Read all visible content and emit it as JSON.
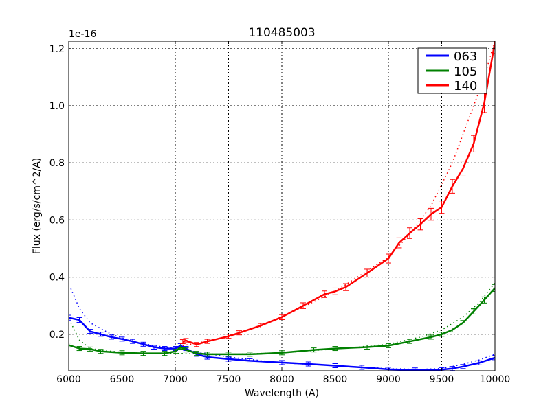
{
  "chart_data": {
    "type": "line",
    "title": "110485003",
    "xlabel": "Wavelength (A)",
    "ylabel": "Flux (erg/s/cm^2/A)",
    "y_offset_label": "1e-16",
    "xlim": [
      6000,
      10000
    ],
    "ylim": [
      0.072,
      1.226
    ],
    "xticks": [
      6000,
      6500,
      7000,
      7500,
      8000,
      8500,
      9000,
      9500,
      10000
    ],
    "yticks": [
      0.2,
      0.4,
      0.6,
      0.8,
      1.0,
      1.2
    ],
    "ytick_labels": [
      "0.2",
      "0.4",
      "0.6",
      "0.8",
      "1.0",
      "1.2"
    ],
    "grid": true,
    "legend_position": "upper right",
    "series": [
      {
        "name": "063",
        "color": "#0000ff",
        "x": [
          6000,
          6100,
          6200,
          6300,
          6400,
          6500,
          6600,
          6700,
          6800,
          6900,
          7000,
          7050,
          7100,
          7200,
          7300,
          7500,
          7700,
          8000,
          8250,
          8500,
          8750,
          9000,
          9250,
          9500,
          9600,
          9700,
          9850,
          10000
        ],
        "values": [
          0.258,
          0.25,
          0.21,
          0.2,
          0.19,
          0.183,
          0.175,
          0.165,
          0.155,
          0.15,
          0.15,
          0.16,
          0.15,
          0.13,
          0.12,
          0.113,
          0.107,
          0.101,
          0.096,
          0.09,
          0.084,
          0.077,
          0.075,
          0.076,
          0.08,
          0.087,
          0.1,
          0.118
        ],
        "model_x": [
          6020,
          6100,
          6200,
          6400,
          6600,
          6800,
          7000,
          7500,
          8000,
          8500,
          9000,
          9300,
          9500,
          9700,
          9850,
          10000
        ],
        "model_values": [
          0.36,
          0.29,
          0.24,
          0.2,
          0.175,
          0.16,
          0.15,
          0.12,
          0.1,
          0.09,
          0.08,
          0.077,
          0.08,
          0.095,
          0.11,
          0.13
        ]
      },
      {
        "name": "105",
        "color": "#008000",
        "x": [
          6000,
          6100,
          6200,
          6300,
          6500,
          6700,
          6900,
          7000,
          7050,
          7100,
          7200,
          7300,
          7500,
          7700,
          8000,
          8300,
          8500,
          8800,
          9000,
          9200,
          9400,
          9500,
          9600,
          9700,
          9800,
          9900,
          10000
        ],
        "values": [
          0.162,
          0.15,
          0.148,
          0.14,
          0.135,
          0.133,
          0.133,
          0.14,
          0.155,
          0.145,
          0.133,
          0.13,
          0.13,
          0.13,
          0.135,
          0.145,
          0.15,
          0.155,
          0.16,
          0.175,
          0.19,
          0.2,
          0.215,
          0.24,
          0.28,
          0.32,
          0.362
        ],
        "model_x": [
          6020,
          6100,
          6200,
          6400,
          6600,
          6800,
          7000,
          7500,
          8000,
          8500,
          9000,
          9300,
          9500,
          9700,
          9850,
          10000
        ],
        "model_values": [
          0.24,
          0.18,
          0.15,
          0.14,
          0.135,
          0.133,
          0.133,
          0.13,
          0.135,
          0.148,
          0.165,
          0.19,
          0.215,
          0.26,
          0.31,
          0.38
        ]
      },
      {
        "name": "140",
        "color": "#ff0000",
        "x": [
          7070,
          7100,
          7200,
          7300,
          7500,
          7600,
          7800,
          8000,
          8200,
          8400,
          8500,
          8600,
          8800,
          9000,
          9100,
          9200,
          9300,
          9400,
          9500,
          9600,
          9700,
          9800,
          9900,
          10000
        ],
        "values": [
          0.174,
          0.178,
          0.164,
          0.175,
          0.193,
          0.205,
          0.23,
          0.26,
          0.3,
          0.34,
          0.35,
          0.365,
          0.414,
          0.465,
          0.52,
          0.554,
          0.585,
          0.62,
          0.645,
          0.718,
          0.78,
          0.867,
          1.01,
          1.224
        ],
        "model_x": [
          7070,
          7500,
          8000,
          8500,
          9000,
          9200,
          9400,
          9600,
          9800,
          9900,
          10000
        ],
        "model_values": [
          0.16,
          0.19,
          0.26,
          0.35,
          0.47,
          0.55,
          0.65,
          0.8,
          1.0,
          1.1,
          1.23
        ]
      }
    ]
  }
}
